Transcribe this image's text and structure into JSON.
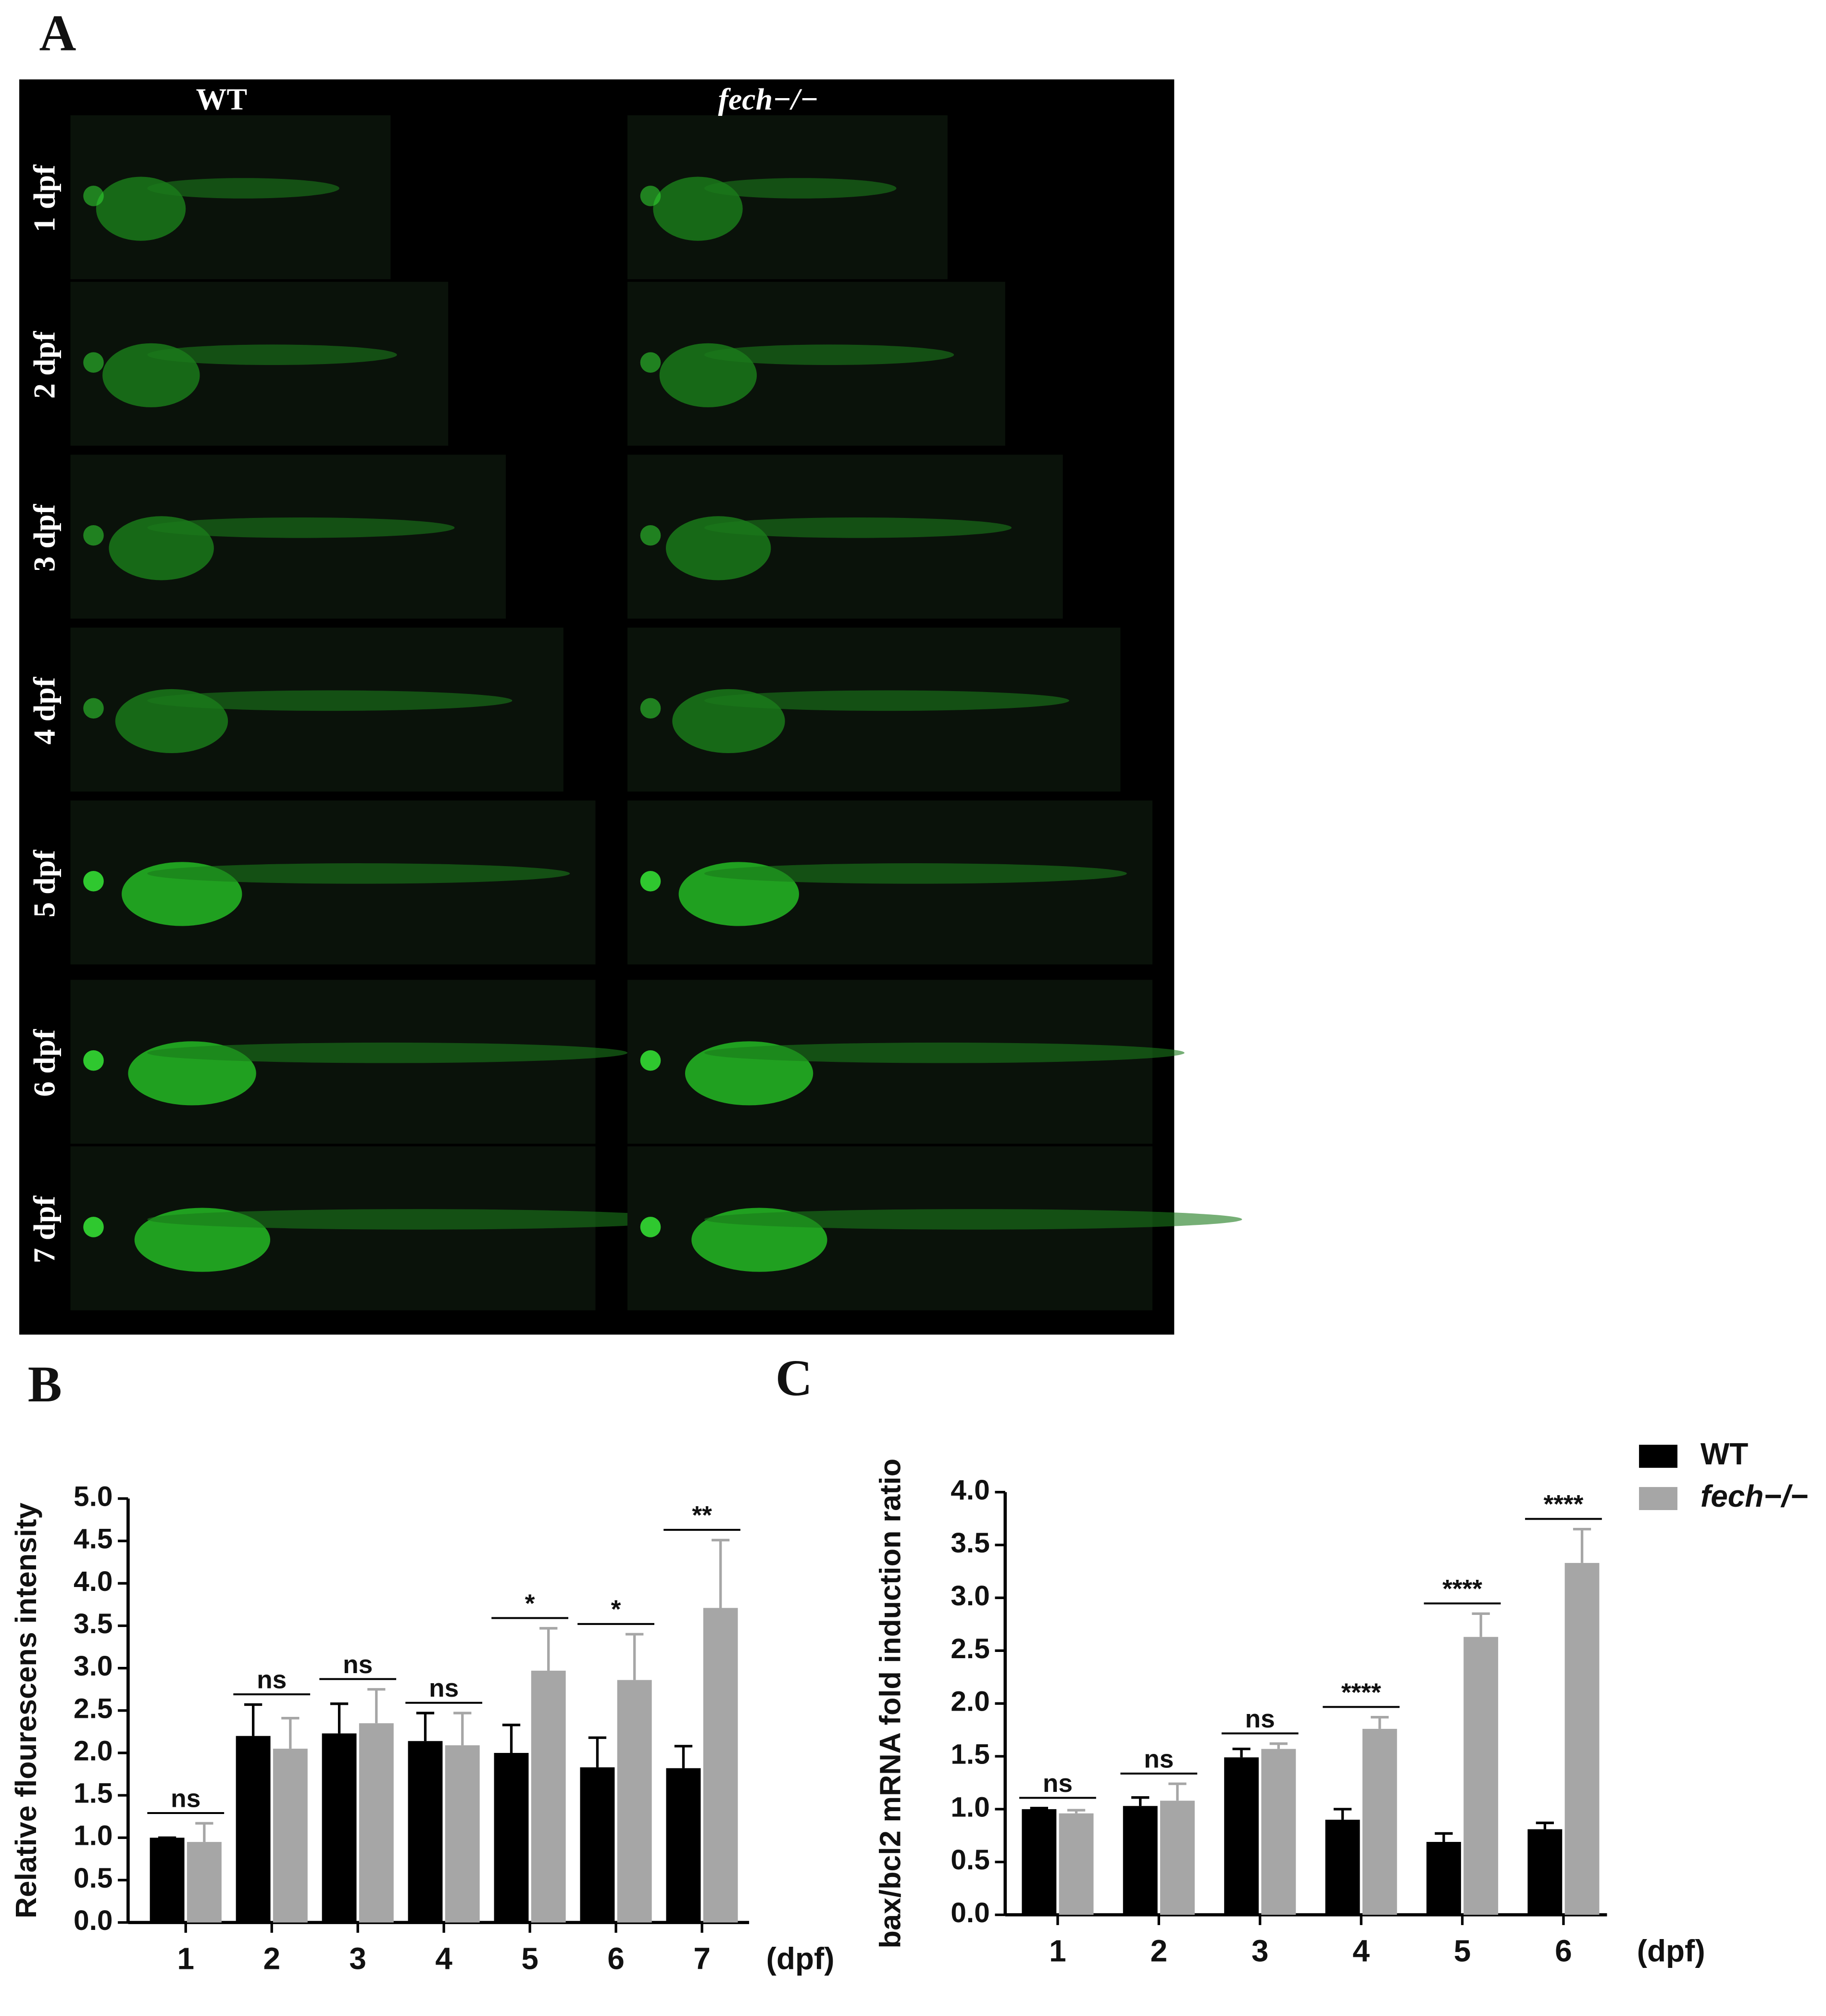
{
  "panel_label": "A",
  "image_panel": {
    "columns": [
      "WT",
      "fech−/−"
    ],
    "rows": [
      "1 dpf",
      "2 dpf",
      "3 dpf",
      "4 dpf",
      "5 dpf",
      "6 dpf",
      "7 dpf"
    ]
  },
  "chart_data": [
    {
      "type": "bar",
      "label": "B",
      "y_label": "Relative flourescens intensity",
      "x_label": "(dpf)",
      "categories": [
        "1",
        "2",
        "3",
        "4",
        "5",
        "6",
        "7"
      ],
      "series": [
        {
          "name": "WT",
          "color": "#000000",
          "values": [
            1.0,
            2.2,
            2.23,
            2.14,
            2.0,
            1.83,
            1.82
          ],
          "errors": [
            0,
            0.37,
            0.35,
            0.33,
            0.33,
            0.35,
            0.26
          ]
        },
        {
          "name": "fech−/−",
          "color": "#a6a6a6",
          "values": [
            0.95,
            2.05,
            2.35,
            2.09,
            2.97,
            2.86,
            3.71
          ],
          "errors": [
            0.22,
            0.36,
            0.4,
            0.38,
            0.5,
            0.54,
            0.8
          ]
        }
      ],
      "annotations": [
        "ns",
        "ns",
        "ns",
        "ns",
        "*",
        "*",
        "**"
      ],
      "ylim": [
        0,
        5
      ],
      "yticks": [
        {
          "value": 0,
          "label": "0.0"
        },
        0.5,
        {
          "value": 1,
          "label": "1.0"
        },
        1.5,
        {
          "value": 2,
          "label": "2.0"
        },
        2.5,
        {
          "value": 3,
          "label": "3.0"
        },
        3.5,
        {
          "value": 4,
          "label": "4.0"
        },
        4.5,
        {
          "value": 5,
          "label": "5.0"
        }
      ],
      "legend": false
    },
    {
      "type": "bar",
      "label": "C",
      "y_label": "bax/bcl2 mRNA fold induction ratio",
      "x_label": "(dpf)",
      "categories": [
        "1",
        "2",
        "3",
        "4",
        "5",
        "6"
      ],
      "series": [
        {
          "name": "WT",
          "color": "#000000",
          "values": [
            1.0,
            1.03,
            1.49,
            0.9,
            0.69,
            0.81
          ],
          "errors": [
            0.01,
            0.08,
            0.08,
            0.1,
            0.08,
            0.06
          ]
        },
        {
          "name": "fech−/−",
          "color": "#a6a6a6",
          "values": [
            0.96,
            1.08,
            1.57,
            1.76,
            2.63,
            3.33
          ],
          "errors": [
            0.03,
            0.16,
            0.05,
            0.11,
            0.22,
            0.32
          ]
        }
      ],
      "annotations": [
        "ns",
        "ns",
        "ns",
        "****",
        "****",
        "****"
      ],
      "ylim": [
        0,
        4
      ],
      "yticks": [
        {
          "value": 0,
          "label": "0.0"
        },
        0.5,
        {
          "value": 1,
          "label": "1.0"
        },
        1.5,
        {
          "value": 2,
          "label": "2.0"
        },
        2.5,
        {
          "value": 3,
          "label": "3.0"
        },
        3.5,
        {
          "value": 4,
          "label": "4.0"
        }
      ],
      "legend": true
    }
  ]
}
